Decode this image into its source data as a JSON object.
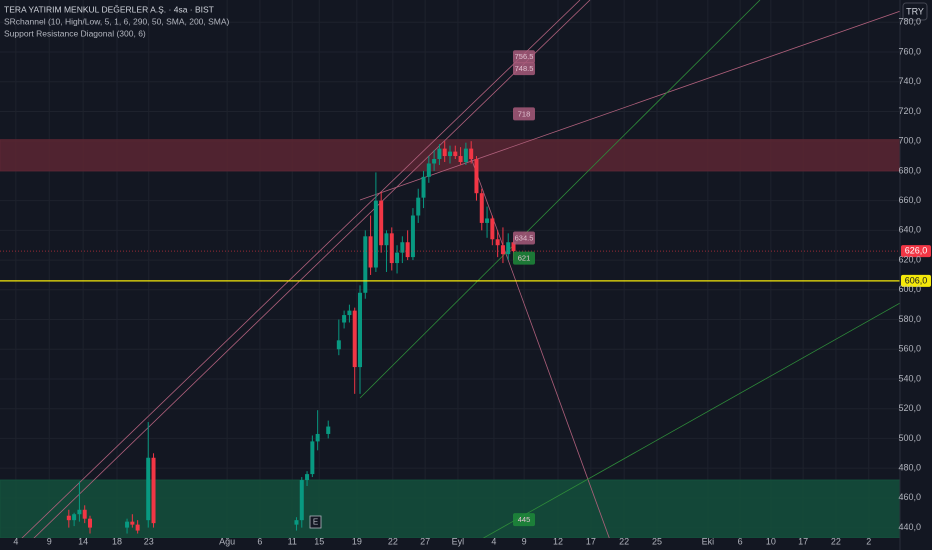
{
  "chart_data": {
    "type": "candlestick",
    "title": "TERA YATIRIM MENKUL DEĞERLER A.Ş. · 4sa · BIST",
    "indicators": [
      "SRchannel (10, High/Low, 5, 1, 6, 290, 50, SMA, 200, SMA)",
      "Support Resistance Diagonal (300, 6)"
    ],
    "currency": "TRY",
    "event_marker": "E",
    "up_color": "#089981",
    "down_color": "#f23645",
    "x": [
      13,
      14,
      15,
      16,
      17,
      24,
      25,
      26,
      28,
      29,
      56,
      57,
      58,
      59,
      60,
      62,
      64,
      65,
      66,
      67,
      68,
      69,
      70,
      71,
      72,
      73,
      74,
      75,
      76,
      77,
      78,
      79,
      80,
      81,
      82,
      83,
      84,
      85,
      86,
      87,
      88,
      89,
      90,
      91,
      92,
      93,
      94,
      95,
      96,
      97
    ],
    "open": [
      448,
      445,
      449,
      452,
      446,
      440,
      444,
      442,
      445,
      487,
      442,
      445,
      472,
      476,
      498,
      503,
      560,
      578,
      583,
      586,
      548,
      598,
      636,
      615,
      660,
      630,
      638,
      618,
      625,
      632,
      622,
      650,
      662,
      676,
      685,
      688,
      695,
      690,
      693,
      690,
      686,
      695,
      688,
      665,
      645,
      648,
      634,
      630,
      624,
      632
    ],
    "high": [
      452,
      450,
      471,
      455,
      448,
      446,
      449,
      445,
      511,
      490,
      447,
      474,
      478,
      502,
      519,
      512,
      580,
      586,
      590,
      588,
      603,
      640,
      650,
      679,
      666,
      640,
      642,
      630,
      636,
      640,
      655,
      668,
      680,
      690,
      694,
      698,
      700,
      697,
      697,
      696,
      699,
      700,
      690,
      668,
      656,
      650,
      640,
      642,
      638,
      635
    ],
    "low": [
      440,
      441,
      444,
      443,
      436,
      436,
      440,
      436,
      440,
      440,
      438,
      440,
      468,
      474,
      492,
      500,
      556,
      574,
      578,
      530,
      530,
      594,
      610,
      612,
      625,
      612,
      613,
      611,
      618,
      620,
      620,
      645,
      655,
      672,
      680,
      684,
      686,
      685,
      688,
      684,
      684,
      685,
      660,
      640,
      635,
      630,
      622,
      618,
      620,
      620
    ],
    "close": [
      445,
      449,
      452,
      446,
      440,
      444,
      442,
      438,
      487,
      443,
      445,
      472,
      476,
      498,
      503,
      508,
      566,
      583,
      586,
      548,
      598,
      636,
      615,
      660,
      630,
      638,
      618,
      625,
      632,
      622,
      650,
      662,
      676,
      685,
      688,
      695,
      690,
      693,
      690,
      686,
      695,
      688,
      665,
      645,
      648,
      634,
      630,
      624,
      632,
      626
    ],
    "xlim": [
      0,
      170
    ],
    "xticks": [
      {
        "value": 3.0,
        "label": "4"
      },
      {
        "value": 9.3,
        "label": "9"
      },
      {
        "value": 15.7,
        "label": "14"
      },
      {
        "value": 22.1,
        "label": "18"
      },
      {
        "value": 28.1,
        "label": "23"
      },
      {
        "value": 42.9,
        "label": "Ağu"
      },
      {
        "value": 49.1,
        "label": "6"
      },
      {
        "value": 55.2,
        "label": "11"
      },
      {
        "value": 60.3,
        "label": "15"
      },
      {
        "value": 67.4,
        "label": "19"
      },
      {
        "value": 74.2,
        "label": "22"
      },
      {
        "value": 80.3,
        "label": "27"
      },
      {
        "value": 86.5,
        "label": "Eyl"
      },
      {
        "value": 93.3,
        "label": "4"
      },
      {
        "value": 99.0,
        "label": "9"
      },
      {
        "value": 105.4,
        "label": "12"
      },
      {
        "value": 111.6,
        "label": "17"
      },
      {
        "value": 117.9,
        "label": "22"
      },
      {
        "value": 124.1,
        "label": "25"
      },
      {
        "value": 133.7,
        "label": "Eki"
      },
      {
        "value": 139.8,
        "label": "6"
      },
      {
        "value": 145.6,
        "label": "10"
      },
      {
        "value": 151.7,
        "label": "17"
      },
      {
        "value": 157.9,
        "label": "22"
      },
      {
        "value": 164.1,
        "label": "2"
      }
    ],
    "ylim": [
      433,
      795
    ],
    "yticks": [
      {
        "value": 440,
        "label": "440,0"
      },
      {
        "value": 460,
        "label": "460,0"
      },
      {
        "value": 480,
        "label": "480,0"
      },
      {
        "value": 500,
        "label": "500,0"
      },
      {
        "value": 520,
        "label": "520,0"
      },
      {
        "value": 540,
        "label": "540,0"
      },
      {
        "value": 560,
        "label": "560,0"
      },
      {
        "value": 580,
        "label": "580,0"
      },
      {
        "value": 600,
        "label": "600,0"
      },
      {
        "value": 620,
        "label": "620,0"
      },
      {
        "value": 640,
        "label": "640,0"
      },
      {
        "value": 660,
        "label": "660,0"
      },
      {
        "value": 680,
        "label": "680,0"
      },
      {
        "value": 700,
        "label": "700,0"
      },
      {
        "value": 720,
        "label": "720,0"
      },
      {
        "value": 740,
        "label": "740,0"
      },
      {
        "value": 760,
        "label": "760,0"
      },
      {
        "value": 780,
        "label": "780,0"
      }
    ],
    "zones": [
      {
        "from": 680,
        "to": 701,
        "color": "#5c2633"
      },
      {
        "from": 433,
        "to": 472,
        "color": "#14503c"
      }
    ],
    "hline": {
      "value": 606,
      "label": "606,0",
      "color": "#f5e90a"
    },
    "last_price": {
      "value": 626,
      "label": "626,0",
      "color": "#f23645"
    },
    "annotations": [
      {
        "value": 756.5,
        "text": "756.5",
        "color": "#a85a7a"
      },
      {
        "value": 748.5,
        "text": "748.5",
        "color": "#a85a7a"
      },
      {
        "value": 718,
        "text": "718",
        "color": "#a85a7a"
      },
      {
        "value": 634.5,
        "text": "634.5",
        "color": "#a85a7a"
      },
      {
        "value": 621,
        "text": "621",
        "color": "#1e8a3a"
      },
      {
        "value": 445,
        "text": "445",
        "color": "#1e8a3a"
      }
    ],
    "grid": true
  }
}
